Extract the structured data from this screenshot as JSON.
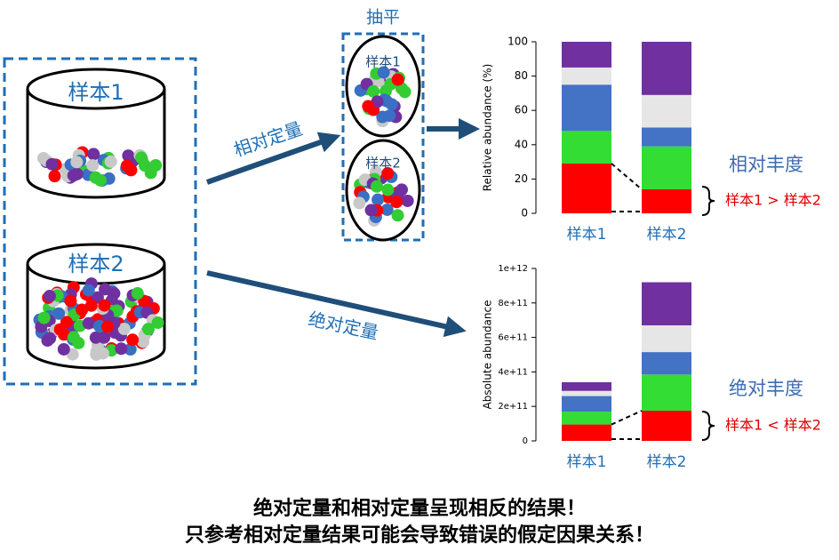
{
  "diagram": {
    "leveling_label": "抽平",
    "sample1_label": "样本1",
    "sample2_label": "样本2",
    "leveled_sample1": "样本1",
    "leveled_sample2": "样本2",
    "relative_quant_label": "相对定量",
    "absolute_quant_label": "绝对定量",
    "relative_abundance_label": "相对丰度",
    "absolute_abundance_label": "绝对丰度",
    "relative_comparison": "样本1 > 样本2",
    "absolute_comparison": "样本1 < 样本2",
    "conclusion_line1": "绝对定量和相对定量呈现相反的结果！",
    "conclusion_line2": "只参考相对定量结果可能会导致错误的假定因果关系！"
  },
  "chart_data": [
    {
      "type": "stacked_bar",
      "y_label": "Relative abundance (%)",
      "categories": [
        "样本1",
        "样本2"
      ],
      "ylim": [
        0,
        100
      ],
      "yticks": [
        0,
        20,
        40,
        60,
        80,
        100
      ],
      "series": [
        {
          "color": "#ff0000",
          "values": [
            29,
            14
          ]
        },
        {
          "color": "#33dd33",
          "values": [
            19,
            25
          ]
        },
        {
          "color": "#4472c4",
          "values": [
            27,
            11
          ]
        },
        {
          "color": "#e6e6e6",
          "values": [
            10,
            19
          ]
        },
        {
          "color": "#7030a0",
          "values": [
            15,
            31
          ]
        }
      ]
    },
    {
      "type": "stacked_bar",
      "y_label": "Absolute abundance",
      "categories": [
        "样本1",
        "样本2"
      ],
      "ylim": [
        0,
        1000000000000
      ],
      "yticks": [
        0,
        {
          "value": 200000000000,
          "label": "2e+11"
        },
        {
          "value": 400000000000,
          "label": "4e+11"
        },
        {
          "value": 600000000000,
          "label": "6e+11"
        },
        {
          "value": 800000000000,
          "label": "8e+11"
        },
        {
          "value": 1000000000000,
          "label": "1e+12"
        }
      ],
      "series": [
        {
          "color": "#ff0000",
          "values": [
            95000000000,
            175000000000
          ]
        },
        {
          "color": "#33dd33",
          "values": [
            75000000000,
            210000000000
          ]
        },
        {
          "color": "#4472c4",
          "values": [
            90000000000,
            130000000000
          ]
        },
        {
          "color": "#e6e6e6",
          "values": [
            30000000000,
            155000000000
          ]
        },
        {
          "color": "#7030a0",
          "values": [
            50000000000,
            250000000000
          ]
        }
      ]
    }
  ]
}
